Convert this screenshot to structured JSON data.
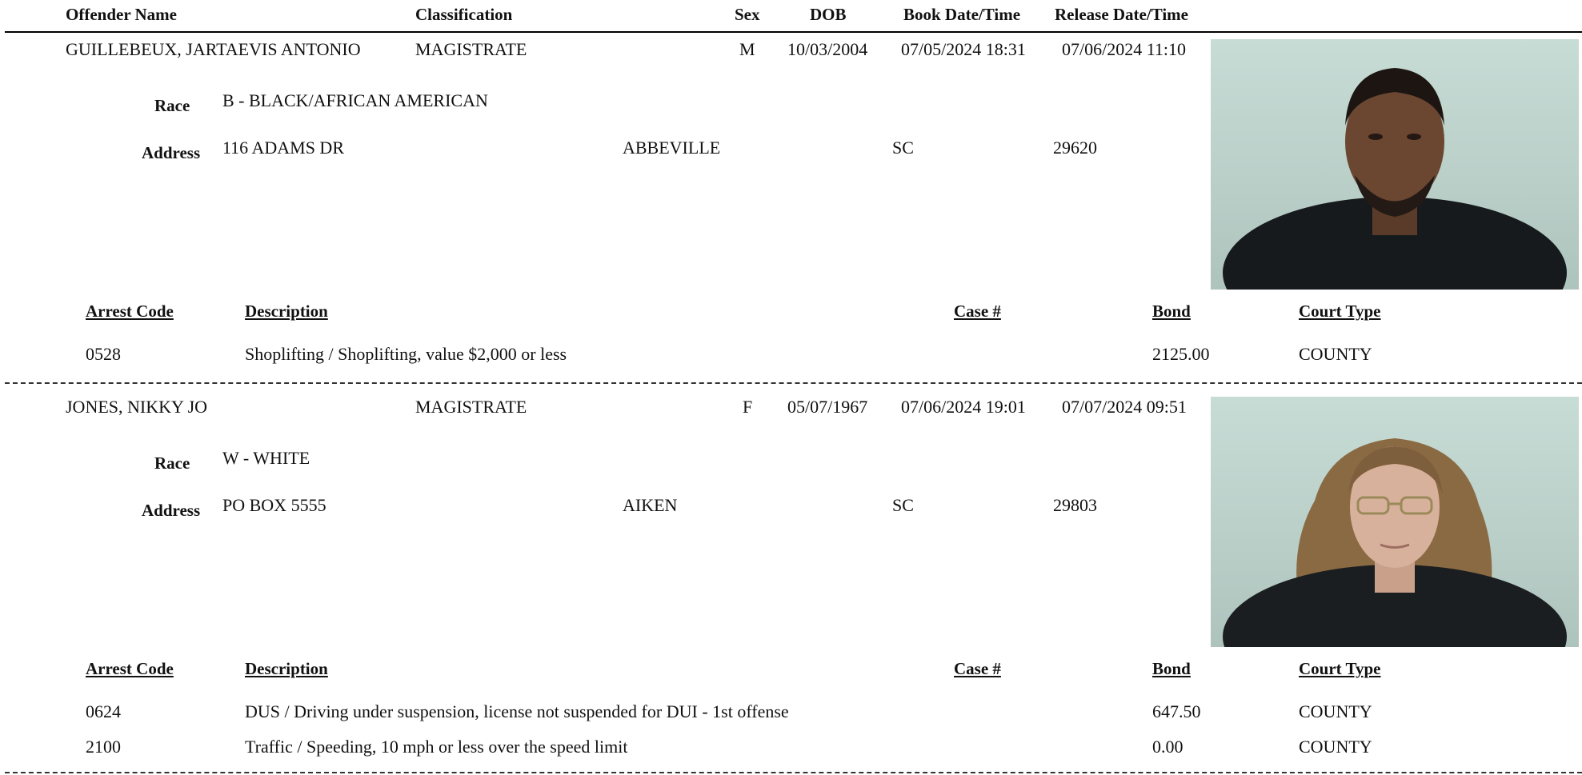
{
  "header": {
    "offender_name": "Offender Name",
    "classification": "Classification",
    "sex": "Sex",
    "dob": "DOB",
    "book": "Book Date/Time",
    "release": "Release Date/Time"
  },
  "labels": {
    "race": "Race",
    "address": "Address",
    "arrest_code": "Arrest Code",
    "description": "Description",
    "case": "Case #",
    "bond": "Bond",
    "court_type": "Court Type"
  },
  "records": [
    {
      "name": "GUILLEBEUX, JARTAEVIS ANTONIO",
      "classification": "MAGISTRATE",
      "sex": "M",
      "dob": "10/03/2004",
      "book": "07/05/2024 18:31",
      "release": "07/06/2024 11:10",
      "race": "B - BLACK/AFRICAN AMERICAN",
      "street": "116 ADAMS DR",
      "city": "ABBEVILLE",
      "state": "SC",
      "zip": "29620",
      "photo_icon": "mugshot-photo",
      "charges": [
        {
          "code": "0528",
          "description": "Shoplifting / Shoplifting, value $2,000 or less",
          "case": "",
          "bond": "2125.00",
          "court": "COUNTY"
        }
      ]
    },
    {
      "name": "JONES, NIKKY JO",
      "classification": "MAGISTRATE",
      "sex": "F",
      "dob": "05/07/1967",
      "book": "07/06/2024 19:01",
      "release": "07/07/2024 09:51",
      "race": "W - WHITE",
      "street": "PO BOX 5555",
      "city": "AIKEN",
      "state": "SC",
      "zip": "29803",
      "photo_icon": "mugshot-photo",
      "charges": [
        {
          "code": "0624",
          "description": "DUS / Driving under suspension, license not suspended for DUI - 1st offense",
          "case": "",
          "bond": "647.50",
          "court": "COUNTY"
        },
        {
          "code": "2100",
          "description": "Traffic / Speeding, 10 mph or less over the speed limit",
          "case": "",
          "bond": "0.00",
          "court": "COUNTY"
        }
      ]
    }
  ]
}
